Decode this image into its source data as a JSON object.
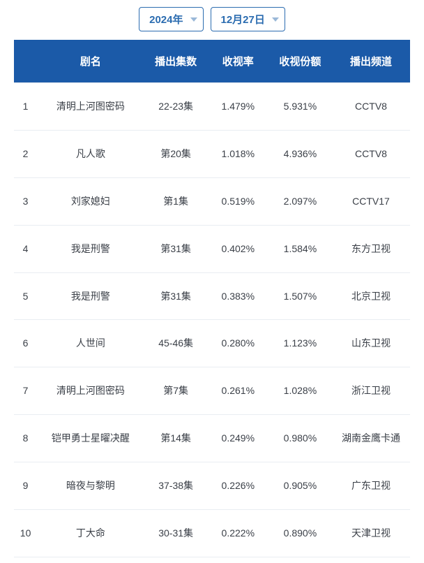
{
  "selectors": {
    "year": "2024年",
    "date": "12月27日"
  },
  "table": {
    "columns": {
      "rank": "",
      "name": "剧名",
      "episodes": "播出集数",
      "rating": "收视率",
      "share": "收视份额",
      "channel": "播出频道"
    },
    "rows": [
      {
        "rank": "1",
        "name": "清明上河图密码",
        "episodes": "22-23集",
        "rating": "1.479%",
        "share": "5.931%",
        "channel": "CCTV8"
      },
      {
        "rank": "2",
        "name": "凡人歌",
        "episodes": "第20集",
        "rating": "1.018%",
        "share": "4.936%",
        "channel": "CCTV8"
      },
      {
        "rank": "3",
        "name": "刘家媳妇",
        "episodes": "第1集",
        "rating": "0.519%",
        "share": "2.097%",
        "channel": "CCTV17"
      },
      {
        "rank": "4",
        "name": "我是刑警",
        "episodes": "第31集",
        "rating": "0.402%",
        "share": "1.584%",
        "channel": "东方卫视"
      },
      {
        "rank": "5",
        "name": "我是刑警",
        "episodes": "第31集",
        "rating": "0.383%",
        "share": "1.507%",
        "channel": "北京卫视"
      },
      {
        "rank": "6",
        "name": "人世间",
        "episodes": "45-46集",
        "rating": "0.280%",
        "share": "1.123%",
        "channel": "山东卫视"
      },
      {
        "rank": "7",
        "name": "清明上河图密码",
        "episodes": "第7集",
        "rating": "0.261%",
        "share": "1.028%",
        "channel": "浙江卫视"
      },
      {
        "rank": "8",
        "name": "铠甲勇士星曜决醒",
        "episodes": "第14集",
        "rating": "0.249%",
        "share": "0.980%",
        "channel": "湖南金鹰卡通"
      },
      {
        "rank": "9",
        "name": "暗夜与黎明",
        "episodes": "37-38集",
        "rating": "0.226%",
        "share": "0.905%",
        "channel": "广东卫视"
      },
      {
        "rank": "10",
        "name": "丁大命",
        "episodes": "30-31集",
        "rating": "0.222%",
        "share": "0.890%",
        "channel": "天津卫视"
      }
    ]
  },
  "style": {
    "header_bg": "#1b5aa8",
    "header_text": "#ffffff",
    "cell_text": "#3a3f47",
    "border_color": "#e9edf2",
    "dropdown_border": "#2b6cb0",
    "dropdown_text": "#2b6cb0",
    "font_header": 15,
    "font_cell": 14
  },
  "watermark": ""
}
